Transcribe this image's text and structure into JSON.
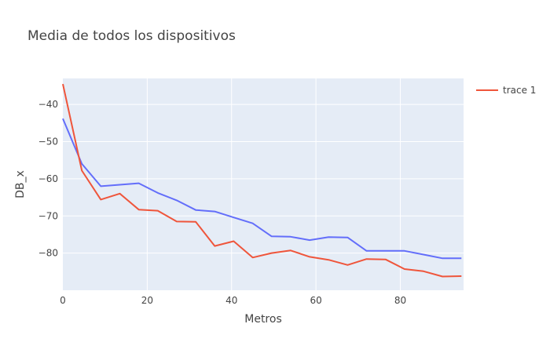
{
  "chart_data": {
    "type": "line",
    "title": "Media de todos los dispositivos",
    "xlabel": "Metros",
    "ylabel": "DB_x",
    "xlim": [
      0,
      95
    ],
    "ylim": [
      -90,
      -33
    ],
    "xticks": [
      0,
      20,
      40,
      60,
      80
    ],
    "yticks": [
      -40,
      -50,
      -60,
      -70,
      -80
    ],
    "grid": true,
    "legend_position": "top-right",
    "colors": {
      "plot_bg": "#e5ecf6",
      "grid": "#ffffff",
      "text": "#444444"
    },
    "series": [
      {
        "color": "#636efa",
        "x": [
          0,
          4.5,
          9,
          13.5,
          18,
          22.5,
          27,
          31.5,
          36,
          40.5,
          45,
          49.5,
          54,
          58.5,
          63,
          67.5,
          72,
          76.5,
          81,
          85.5,
          90,
          94.5
        ],
        "y": [
          -43.8,
          -56.0,
          -62.0,
          -61.6,
          -61.2,
          -63.8,
          -65.8,
          -68.4,
          -68.8,
          -70.4,
          -72.0,
          -75.5,
          -75.6,
          -76.5,
          -75.7,
          -75.8,
          -79.4,
          -79.4,
          -79.4,
          -80.4,
          -81.4,
          -81.4
        ]
      },
      {
        "name": "trace 1",
        "color": "#ef553b",
        "x": [
          0,
          4.5,
          9,
          13.5,
          18,
          22.5,
          27,
          31.5,
          36,
          40.5,
          45,
          49.5,
          54,
          58.5,
          63,
          67.5,
          72,
          76.5,
          81,
          85.5,
          90,
          94.5
        ],
        "y": [
          -34.5,
          -57.8,
          -65.6,
          -64.0,
          -68.3,
          -68.6,
          -71.5,
          -71.6,
          -78.1,
          -76.8,
          -81.2,
          -80.0,
          -79.3,
          -81.0,
          -81.8,
          -83.2,
          -81.6,
          -81.7,
          -84.3,
          -84.9,
          -86.3,
          -86.2
        ]
      }
    ]
  }
}
